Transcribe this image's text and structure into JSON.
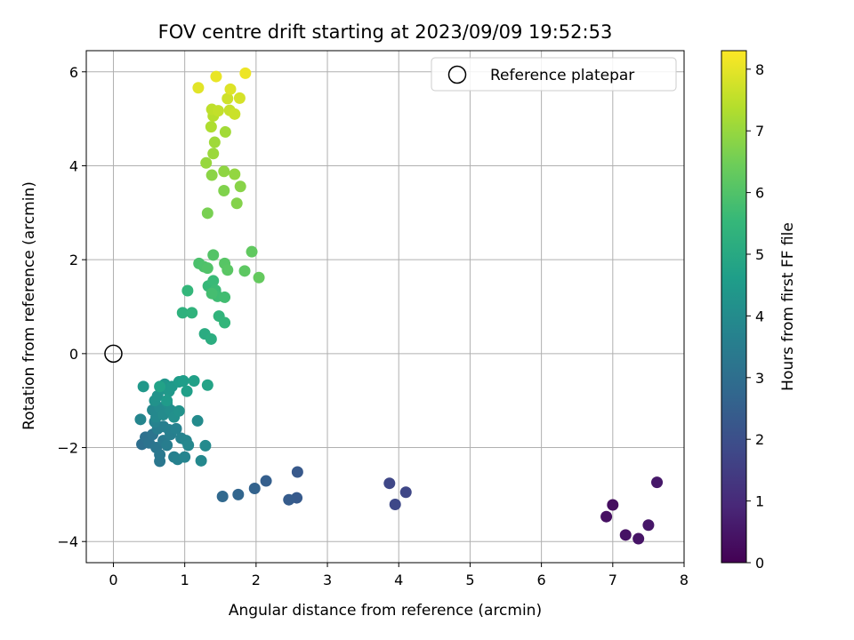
{
  "chart_data": {
    "type": "scatter",
    "title": "FOV centre drift starting at 2023/09/09 19:52:53",
    "xlabel": "Angular distance from reference (arcmin)",
    "ylabel": "Rotation from reference (arcmin)",
    "xlim": [
      -0.38,
      8.0
    ],
    "ylim": [
      -4.45,
      6.45
    ],
    "xticks": [
      "0",
      "1",
      "2",
      "3",
      "4",
      "5",
      "6",
      "7",
      "8"
    ],
    "yticks": [
      "−4",
      "−2",
      "0",
      "2",
      "4",
      "6"
    ],
    "grid": true,
    "legend": {
      "placement": "top-right",
      "entries": [
        "Reference platepar"
      ]
    },
    "reference_point": {
      "x": 0,
      "y": 0
    },
    "colorbar": {
      "label": "Hours from first FF file",
      "colormap": "viridis",
      "range": [
        0,
        8.3
      ],
      "ticks": [
        "0",
        "1",
        "2",
        "3",
        "4",
        "5",
        "6",
        "7",
        "8"
      ]
    },
    "series": [
      {
        "points": [
          {
            "x": 7.0,
            "y": -3.22,
            "c": 0.3
          },
          {
            "x": 6.91,
            "y": -3.47,
            "c": 0.35
          },
          {
            "x": 7.18,
            "y": -3.86,
            "c": 0.4
          },
          {
            "x": 7.36,
            "y": -3.94,
            "c": 0.45
          },
          {
            "x": 7.5,
            "y": -3.65,
            "c": 0.5
          },
          {
            "x": 7.62,
            "y": -2.74,
            "c": 0.55
          },
          {
            "x": 3.87,
            "y": -2.76,
            "c": 1.75
          },
          {
            "x": 4.1,
            "y": -2.95,
            "c": 1.75
          },
          {
            "x": 3.95,
            "y": -3.21,
            "c": 1.8
          },
          {
            "x": 2.58,
            "y": -2.52,
            "c": 2.3
          },
          {
            "x": 2.57,
            "y": -3.07,
            "c": 2.35
          },
          {
            "x": 2.46,
            "y": -3.11,
            "c": 2.4
          },
          {
            "x": 2.14,
            "y": -2.71,
            "c": 2.5
          },
          {
            "x": 1.98,
            "y": -2.87,
            "c": 2.6
          },
          {
            "x": 1.75,
            "y": -3.0,
            "c": 2.7
          },
          {
            "x": 1.53,
            "y": -3.04,
            "c": 2.8
          },
          {
            "x": 0.4,
            "y": -1.93,
            "c": 3.0
          },
          {
            "x": 0.45,
            "y": -1.78,
            "c": 3.1
          },
          {
            "x": 0.5,
            "y": -1.9,
            "c": 3.15
          },
          {
            "x": 0.55,
            "y": -1.72,
            "c": 3.2
          },
          {
            "x": 0.6,
            "y": -2.0,
            "c": 3.25
          },
          {
            "x": 0.65,
            "y": -2.29,
            "c": 3.3
          },
          {
            "x": 0.65,
            "y": -2.15,
            "c": 3.35
          },
          {
            "x": 0.7,
            "y": -1.85,
            "c": 3.4
          },
          {
            "x": 0.75,
            "y": -1.95,
            "c": 3.5
          },
          {
            "x": 0.8,
            "y": -1.72,
            "c": 3.55
          },
          {
            "x": 0.85,
            "y": -2.2,
            "c": 3.6
          },
          {
            "x": 0.9,
            "y": -2.25,
            "c": 3.65
          },
          {
            "x": 0.95,
            "y": -1.8,
            "c": 3.7
          },
          {
            "x": 1.0,
            "y": -2.2,
            "c": 3.75
          },
          {
            "x": 1.02,
            "y": -1.85,
            "c": 3.8
          },
          {
            "x": 1.05,
            "y": -1.95,
            "c": 3.85
          },
          {
            "x": 1.23,
            "y": -2.28,
            "c": 3.9
          },
          {
            "x": 1.29,
            "y": -1.96,
            "c": 3.95
          },
          {
            "x": 0.62,
            "y": -1.6,
            "c": 3.5
          },
          {
            "x": 0.7,
            "y": -1.55,
            "c": 3.55
          },
          {
            "x": 0.78,
            "y": -1.62,
            "c": 3.6
          },
          {
            "x": 0.88,
            "y": -1.6,
            "c": 3.65
          },
          {
            "x": 0.58,
            "y": -1.45,
            "c": 3.7
          },
          {
            "x": 0.38,
            "y": -1.4,
            "c": 3.8
          },
          {
            "x": 0.55,
            "y": -1.2,
            "c": 3.85
          },
          {
            "x": 0.6,
            "y": -1.35,
            "c": 3.9
          },
          {
            "x": 0.65,
            "y": -1.15,
            "c": 3.95
          },
          {
            "x": 0.7,
            "y": -1.3,
            "c": 4.0
          },
          {
            "x": 0.75,
            "y": -1.05,
            "c": 4.05
          },
          {
            "x": 0.8,
            "y": -1.2,
            "c": 4.1
          },
          {
            "x": 0.85,
            "y": -1.35,
            "c": 4.15
          },
          {
            "x": 0.92,
            "y": -1.22,
            "c": 4.2
          },
          {
            "x": 1.18,
            "y": -1.43,
            "c": 4.0
          },
          {
            "x": 0.58,
            "y": -1.0,
            "c": 4.2
          },
          {
            "x": 0.62,
            "y": -0.9,
            "c": 4.25
          },
          {
            "x": 0.68,
            "y": -0.75,
            "c": 4.3
          },
          {
            "x": 0.72,
            "y": -0.65,
            "c": 4.35
          },
          {
            "x": 0.78,
            "y": -0.8,
            "c": 4.4
          },
          {
            "x": 0.82,
            "y": -0.7,
            "c": 4.45
          },
          {
            "x": 0.75,
            "y": -1.0,
            "c": 4.5
          },
          {
            "x": 0.92,
            "y": -0.6,
            "c": 4.55
          },
          {
            "x": 0.98,
            "y": -0.58,
            "c": 4.6
          },
          {
            "x": 1.03,
            "y": -0.8,
            "c": 4.65
          },
          {
            "x": 1.13,
            "y": -0.58,
            "c": 4.7
          },
          {
            "x": 0.65,
            "y": -0.7,
            "c": 4.75
          },
          {
            "x": 0.42,
            "y": -0.7,
            "c": 4.4
          },
          {
            "x": 1.32,
            "y": -0.67,
            "c": 4.8
          },
          {
            "x": 1.28,
            "y": 0.42,
            "c": 5.1
          },
          {
            "x": 1.37,
            "y": 0.31,
            "c": 5.15
          },
          {
            "x": 0.97,
            "y": 0.87,
            "c": 5.3
          },
          {
            "x": 1.1,
            "y": 0.87,
            "c": 5.35
          },
          {
            "x": 1.48,
            "y": 0.8,
            "c": 5.4
          },
          {
            "x": 1.56,
            "y": 0.66,
            "c": 5.45
          },
          {
            "x": 1.04,
            "y": 1.34,
            "c": 5.5
          },
          {
            "x": 1.33,
            "y": 1.44,
            "c": 5.55
          },
          {
            "x": 1.4,
            "y": 1.55,
            "c": 5.6
          },
          {
            "x": 1.43,
            "y": 1.35,
            "c": 5.65
          },
          {
            "x": 1.46,
            "y": 1.22,
            "c": 5.7
          },
          {
            "x": 1.56,
            "y": 1.2,
            "c": 5.75
          },
          {
            "x": 1.38,
            "y": 1.28,
            "c": 5.8
          },
          {
            "x": 1.2,
            "y": 1.92,
            "c": 5.9
          },
          {
            "x": 1.27,
            "y": 1.85,
            "c": 5.95
          },
          {
            "x": 1.32,
            "y": 1.82,
            "c": 6.0
          },
          {
            "x": 1.4,
            "y": 2.1,
            "c": 6.05
          },
          {
            "x": 1.56,
            "y": 1.92,
            "c": 6.1
          },
          {
            "x": 1.6,
            "y": 1.78,
            "c": 6.15
          },
          {
            "x": 1.84,
            "y": 1.76,
            "c": 6.2
          },
          {
            "x": 1.94,
            "y": 2.17,
            "c": 6.25
          },
          {
            "x": 2.04,
            "y": 1.62,
            "c": 6.3
          },
          {
            "x": 1.32,
            "y": 2.99,
            "c": 6.6
          },
          {
            "x": 1.55,
            "y": 3.47,
            "c": 6.7
          },
          {
            "x": 1.73,
            "y": 3.2,
            "c": 6.75
          },
          {
            "x": 1.78,
            "y": 3.56,
            "c": 6.8
          },
          {
            "x": 1.38,
            "y": 3.8,
            "c": 6.85
          },
          {
            "x": 1.55,
            "y": 3.88,
            "c": 6.9
          },
          {
            "x": 1.7,
            "y": 3.82,
            "c": 6.95
          },
          {
            "x": 1.3,
            "y": 4.06,
            "c": 7.0
          },
          {
            "x": 1.4,
            "y": 4.26,
            "c": 7.05
          },
          {
            "x": 1.42,
            "y": 4.5,
            "c": 7.1
          },
          {
            "x": 1.57,
            "y": 4.72,
            "c": 7.15
          },
          {
            "x": 1.37,
            "y": 4.83,
            "c": 7.3
          },
          {
            "x": 1.4,
            "y": 5.06,
            "c": 7.4
          },
          {
            "x": 1.38,
            "y": 5.2,
            "c": 7.5
          },
          {
            "x": 1.47,
            "y": 5.17,
            "c": 7.55
          },
          {
            "x": 1.63,
            "y": 5.18,
            "c": 7.6
          },
          {
            "x": 1.7,
            "y": 5.1,
            "c": 7.65
          },
          {
            "x": 1.6,
            "y": 5.43,
            "c": 7.7
          },
          {
            "x": 1.77,
            "y": 5.44,
            "c": 7.8
          },
          {
            "x": 1.64,
            "y": 5.63,
            "c": 7.9
          },
          {
            "x": 1.19,
            "y": 5.66,
            "c": 7.95
          },
          {
            "x": 1.44,
            "y": 5.9,
            "c": 8.05
          },
          {
            "x": 1.85,
            "y": 5.97,
            "c": 8.1
          }
        ]
      }
    ]
  }
}
